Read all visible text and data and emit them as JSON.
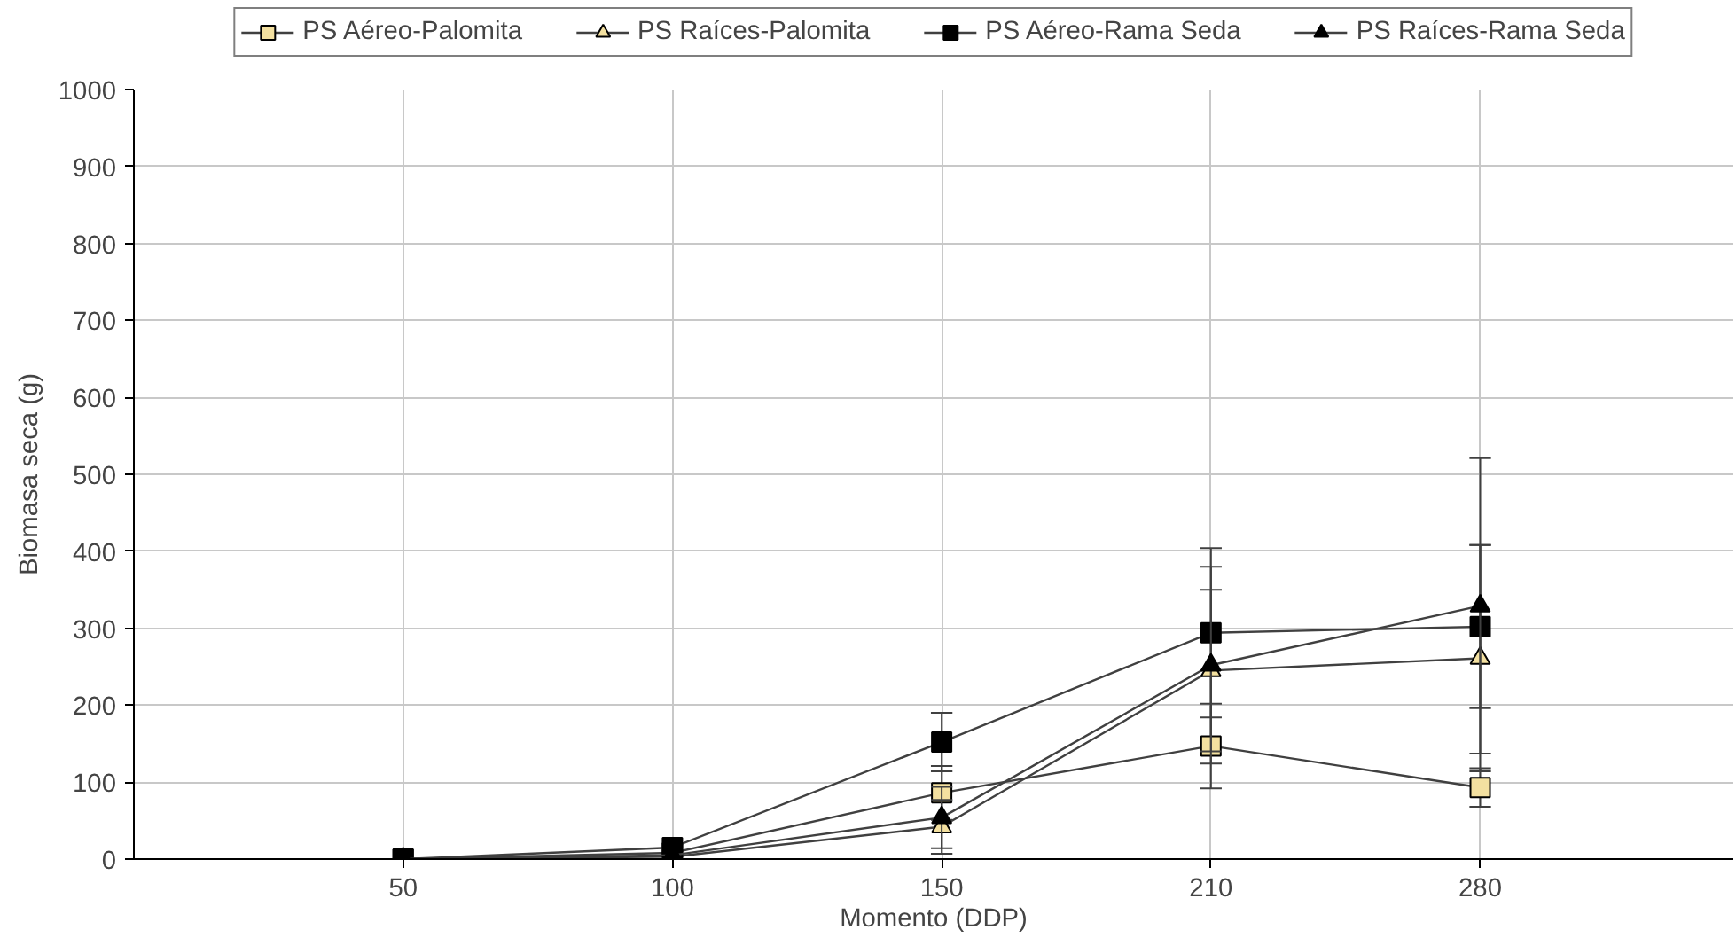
{
  "chart_data": {
    "type": "line",
    "xlabel": "Momento (DDP)",
    "ylabel": "Biomasa seca (g)",
    "categories": [
      "50",
      "100",
      "150",
      "210",
      "280"
    ],
    "ylim": [
      0,
      1000
    ],
    "yticks": [
      0,
      100,
      200,
      300,
      400,
      500,
      600,
      700,
      800,
      900,
      1000
    ],
    "grid": true,
    "legend": "top",
    "series": [
      {
        "name": "PS Aéreo-Palomita",
        "color": "#f3e0a0",
        "marker": "square",
        "values": [
          0,
          8,
          86,
          147,
          93
        ],
        "errors": [
          null,
          null,
          35,
          55,
          25
        ]
      },
      {
        "name": "PS Raíces-Palomita",
        "color": "#f3e0a0",
        "marker": "triangle",
        "values": [
          0,
          3,
          42,
          245,
          261
        ],
        "errors": [
          null,
          null,
          35,
          105,
          147
        ]
      },
      {
        "name": "PS Aéreo-Rama Seda",
        "color": "#000000",
        "marker": "square",
        "values": [
          0,
          15,
          152,
          294,
          302
        ],
        "errors": [
          null,
          null,
          38,
          110,
          106
        ]
      },
      {
        "name": "PS Raíces-Rama Seda",
        "color": "#000000",
        "marker": "triangle",
        "values": [
          0,
          5,
          54,
          252,
          329
        ],
        "errors": [
          null,
          null,
          40,
          128,
          192
        ]
      }
    ]
  }
}
